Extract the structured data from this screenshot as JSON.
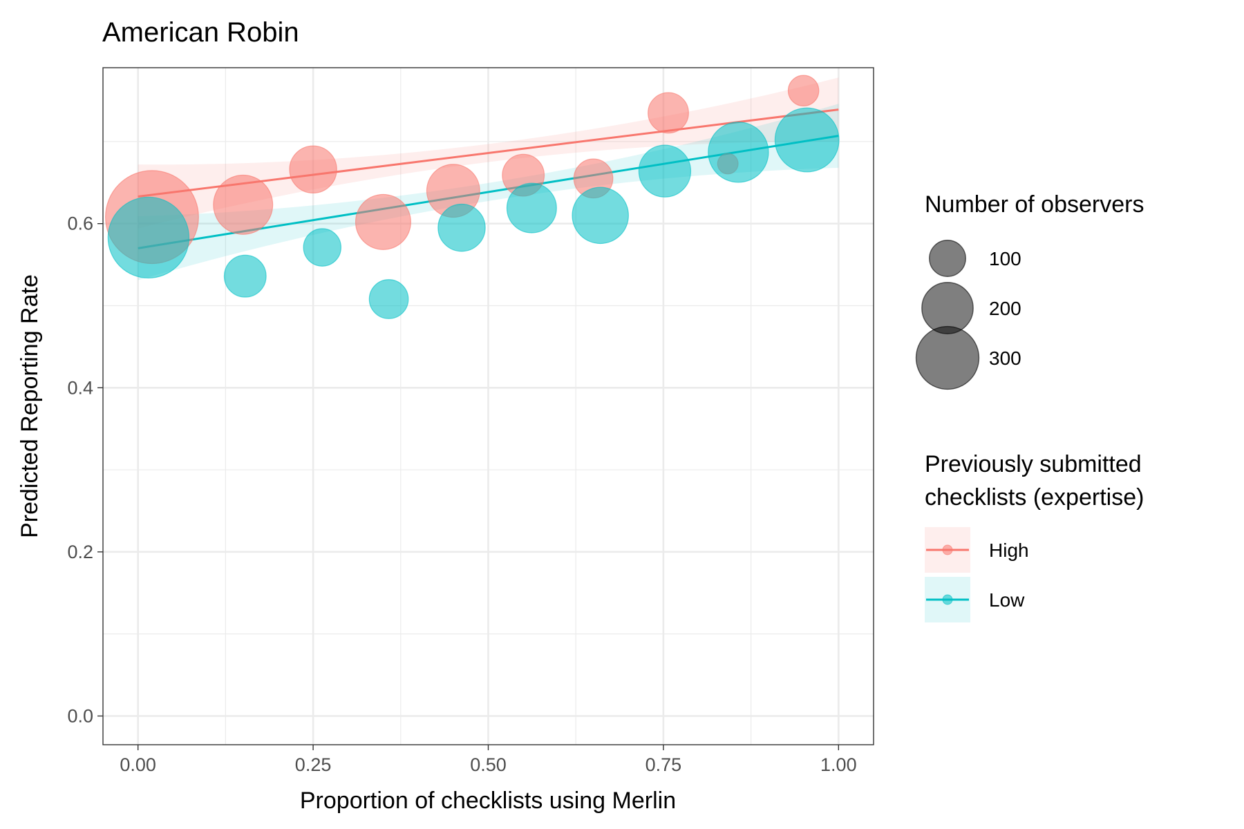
{
  "chart_data": {
    "type": "scatter",
    "title": "American Robin",
    "xlabel": "Proportion of checklists using Merlin",
    "ylabel": "Predicted Reporting Rate",
    "xlim": [
      -0.05,
      1.05
    ],
    "ylim": [
      -0.035,
      0.79
    ],
    "x_ticks": [
      "0.00",
      "0.25",
      "0.50",
      "0.75",
      "1.00"
    ],
    "y_ticks": [
      "0.0",
      "0.2",
      "0.4",
      "0.6"
    ],
    "grid": true,
    "legend_position": "right",
    "size_legend": {
      "title": "Number of observers",
      "entries": [
        {
          "label": "100",
          "value": 100
        },
        {
          "label": "200",
          "value": 200
        },
        {
          "label": "300",
          "value": 300
        }
      ]
    },
    "color_legend": {
      "title_lines": [
        "Previously submitted",
        "checklists (expertise)"
      ],
      "entries": [
        {
          "label": "High",
          "color": "#F8766D"
        },
        {
          "label": "Low",
          "color": "#00BFC4"
        }
      ]
    },
    "series": [
      {
        "name": "High",
        "color": "#F8766D",
        "points": [
          {
            "x": 0.02,
            "y": 0.608,
            "n": 370
          },
          {
            "x": 0.15,
            "y": 0.623,
            "n": 150
          },
          {
            "x": 0.25,
            "y": 0.666,
            "n": 95
          },
          {
            "x": 0.35,
            "y": 0.602,
            "n": 130
          },
          {
            "x": 0.45,
            "y": 0.64,
            "n": 120
          },
          {
            "x": 0.55,
            "y": 0.659,
            "n": 75
          },
          {
            "x": 0.65,
            "y": 0.655,
            "n": 65
          },
          {
            "x": 0.757,
            "y": 0.735,
            "n": 70
          },
          {
            "x": 0.842,
            "y": 0.673,
            "n": 18
          },
          {
            "x": 0.95,
            "y": 0.762,
            "n": 40
          }
        ],
        "fit": {
          "intercept": 0.633,
          "slope": 0.106
        }
      },
      {
        "name": "Low",
        "color": "#00BFC4",
        "points": [
          {
            "x": 0.015,
            "y": 0.583,
            "n": 280
          },
          {
            "x": 0.153,
            "y": 0.536,
            "n": 75
          },
          {
            "x": 0.263,
            "y": 0.571,
            "n": 60
          },
          {
            "x": 0.358,
            "y": 0.508,
            "n": 65
          },
          {
            "x": 0.462,
            "y": 0.595,
            "n": 95
          },
          {
            "x": 0.562,
            "y": 0.619,
            "n": 105
          },
          {
            "x": 0.66,
            "y": 0.61,
            "n": 135
          },
          {
            "x": 0.752,
            "y": 0.664,
            "n": 115
          },
          {
            "x": 0.857,
            "y": 0.687,
            "n": 155
          },
          {
            "x": 0.955,
            "y": 0.702,
            "n": 175
          }
        ],
        "fit": {
          "intercept": 0.57,
          "slope": 0.137
        }
      }
    ]
  },
  "colors": {
    "high": "#F8766D",
    "low": "#00BFC4",
    "grid": "#ebebeb",
    "panel_border": "#333333",
    "axis_text": "#4d4d4d"
  }
}
